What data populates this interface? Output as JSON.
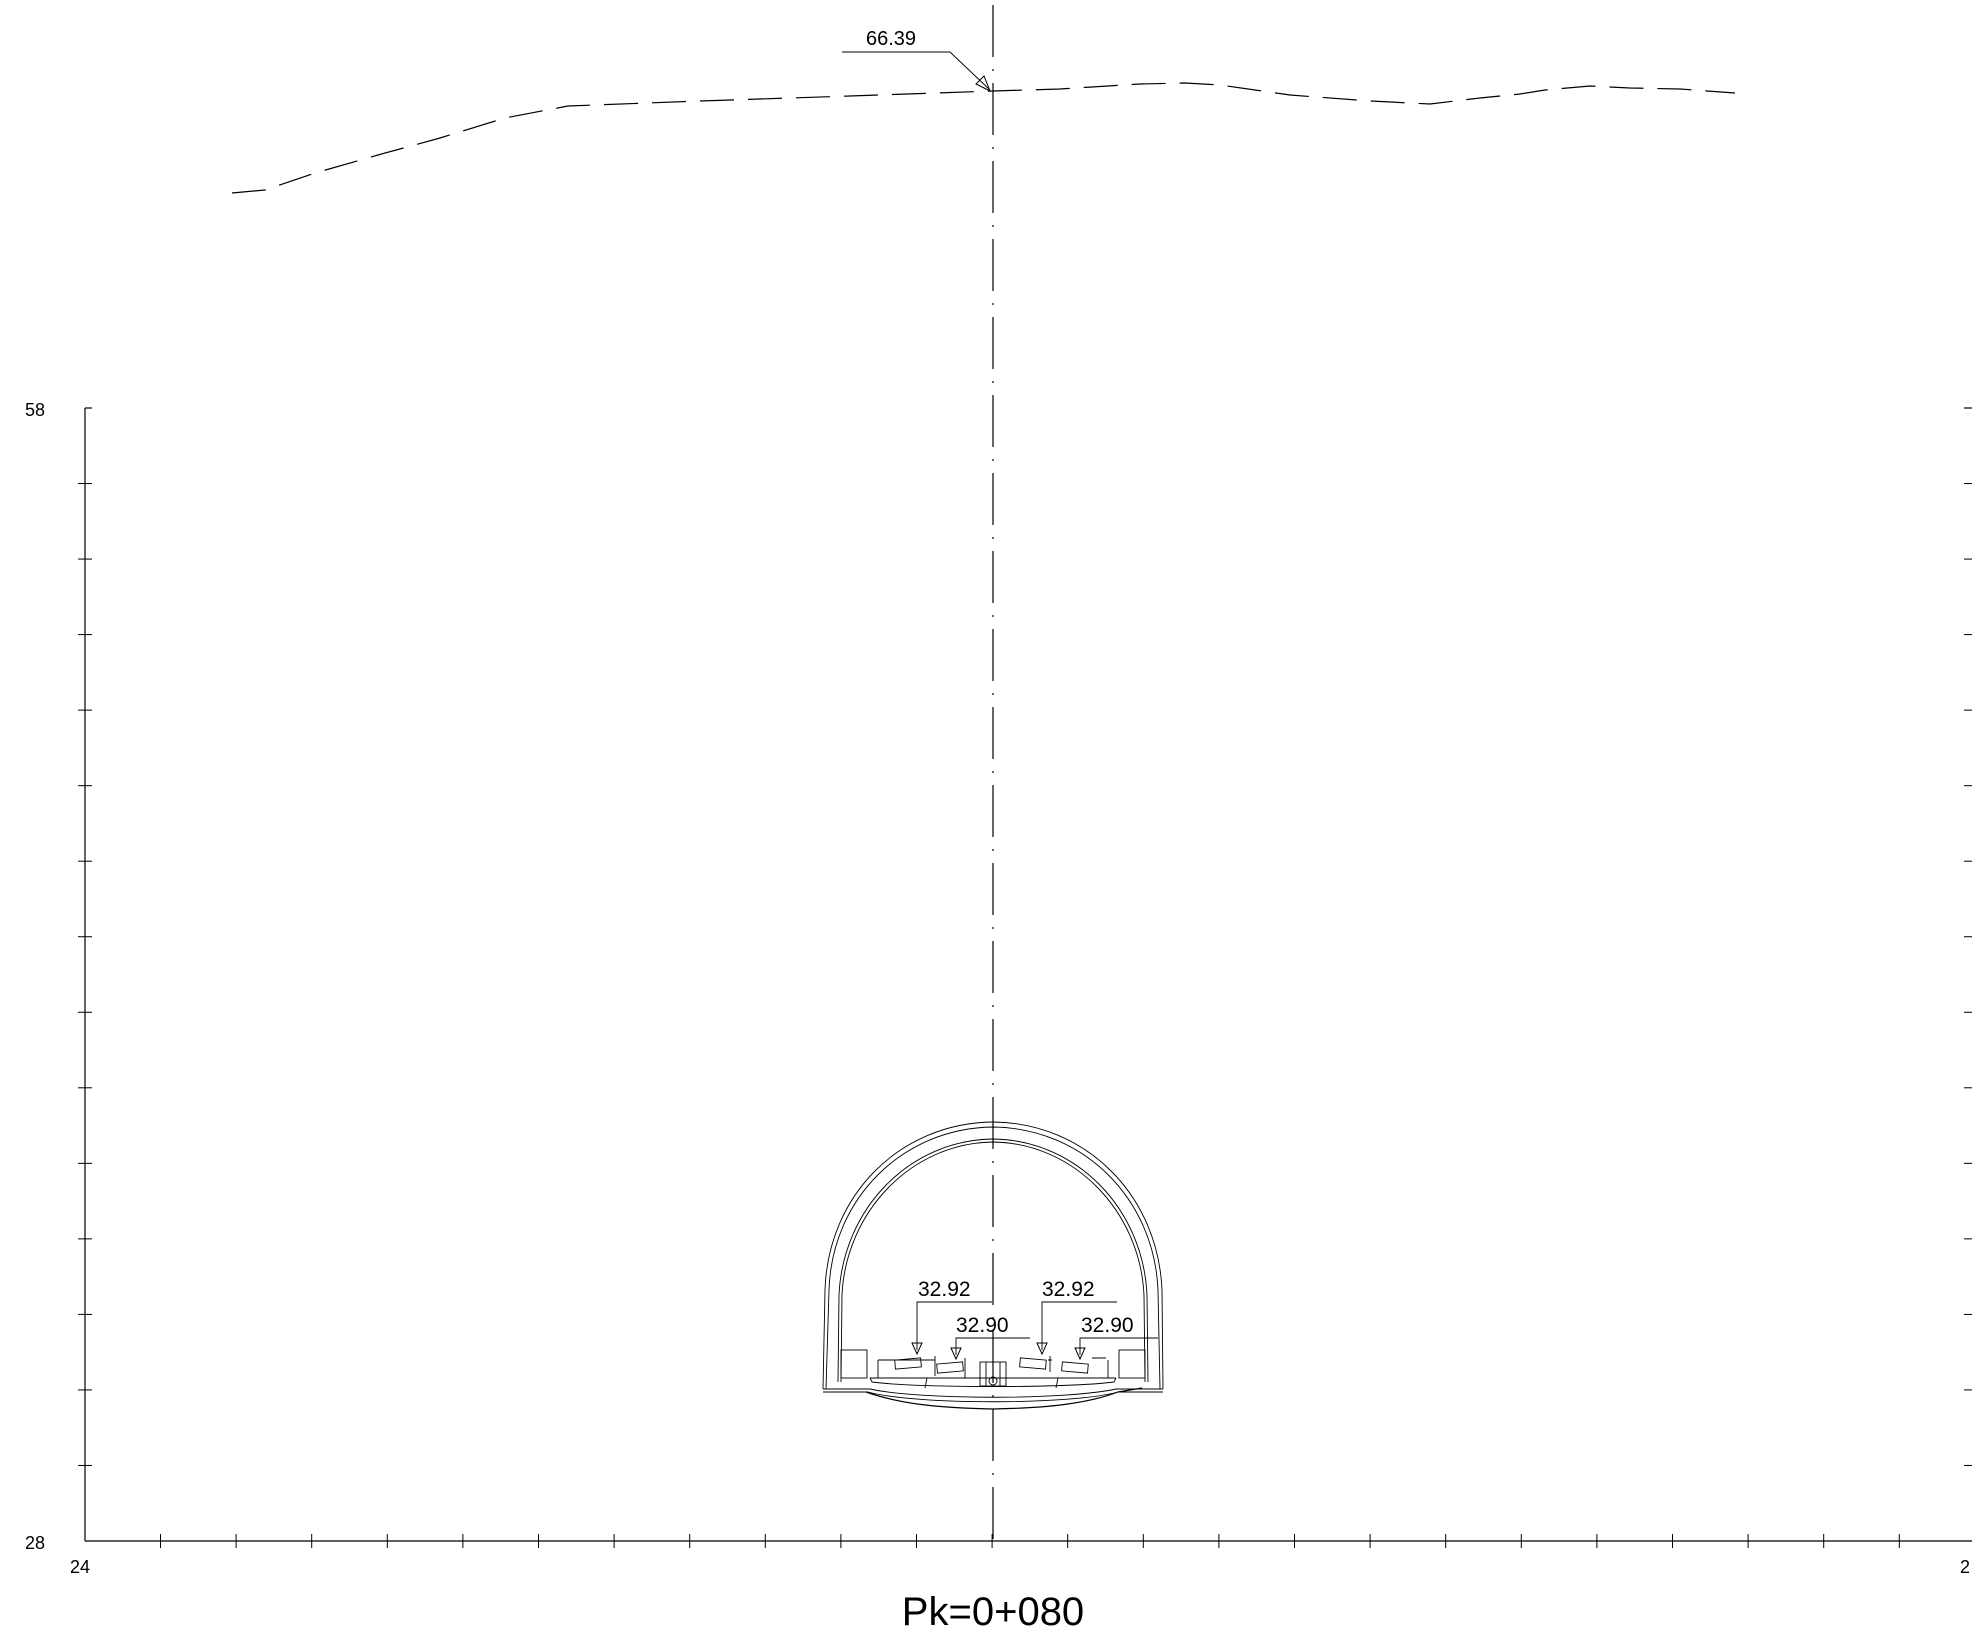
{
  "section_label": "Pk=0+080",
  "axes": {
    "y_top_label": "58",
    "y_bottom_label": "28",
    "x_left_label": "24",
    "x_right_label": "2"
  },
  "ground": {
    "elevation_label": "66.39"
  },
  "rail_levels": {
    "left_upper": "32.92",
    "left_lower": "32.90",
    "right_upper": "32.92",
    "right_lower": "32.90"
  },
  "colors": {
    "line": "#000000",
    "background": "#ffffff"
  }
}
